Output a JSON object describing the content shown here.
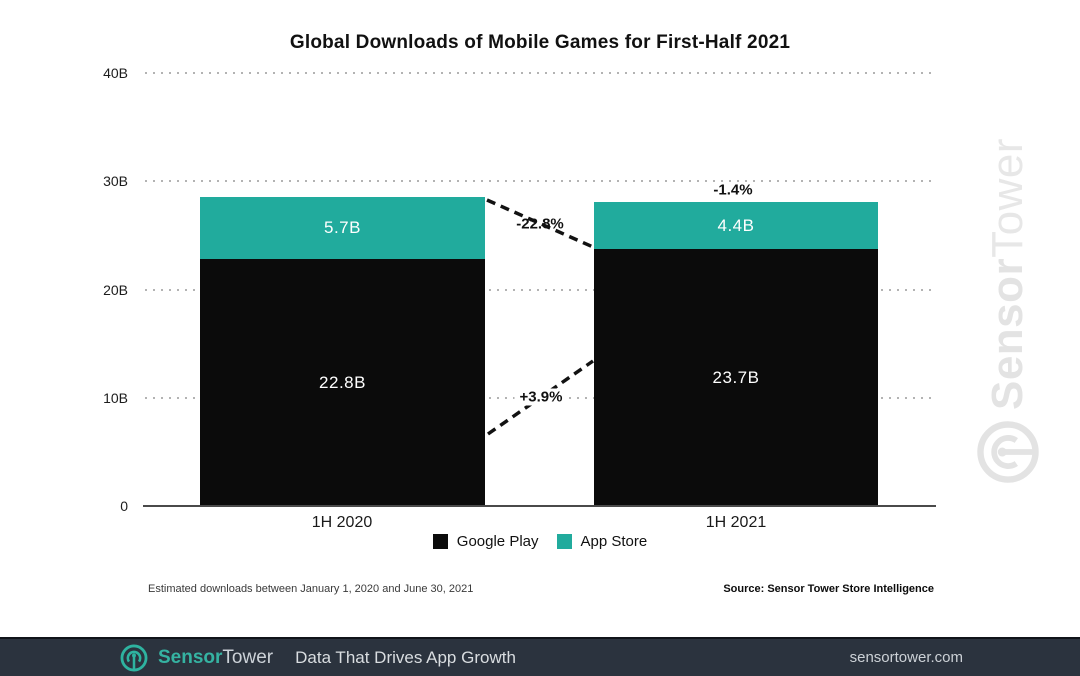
{
  "chart_data": {
    "type": "bar",
    "stacked": true,
    "title": "Global Downloads of Mobile Games for First-Half 2021",
    "categories": [
      "1H 2020",
      "1H 2021"
    ],
    "series": [
      {
        "name": "Google Play",
        "color": "#0b0b0b",
        "label_color": "#ffffff",
        "values": [
          22.8,
          23.7
        ],
        "labels": [
          "22.8B",
          "23.7B"
        ]
      },
      {
        "name": "App Store",
        "color": "#21ab9d",
        "label_color": "#ffffff",
        "values": [
          5.7,
          4.4
        ],
        "labels": [
          "5.7B",
          "4.4B"
        ]
      }
    ],
    "ylim": [
      0,
      40
    ],
    "yticks": [
      {
        "value": 0,
        "label": "0"
      },
      {
        "value": 10,
        "label": "10B"
      },
      {
        "value": 20,
        "label": "20B"
      },
      {
        "value": 30,
        "label": "30B"
      },
      {
        "value": 40,
        "label": "40B"
      }
    ],
    "grid": "dotted-horizontal",
    "legend_position": "bottom-center",
    "annotations": [
      {
        "label": "-22.8%"
      },
      {
        "label": "+3.9%"
      },
      {
        "label": "-1.4%"
      }
    ]
  },
  "footnote": "Estimated downloads between January 1, 2020 and June 30, 2021",
  "source": "Source: Sensor Tower Store Intelligence",
  "watermark": {
    "brand_first": "Sensor",
    "brand_second": "Tower"
  },
  "footer": {
    "brand_first": "Sensor",
    "brand_second": "Tower",
    "tagline": "Data That Drives App Growth",
    "website": "sensortower.com",
    "background": "#2b333e",
    "accent": "#2eb3a0"
  }
}
